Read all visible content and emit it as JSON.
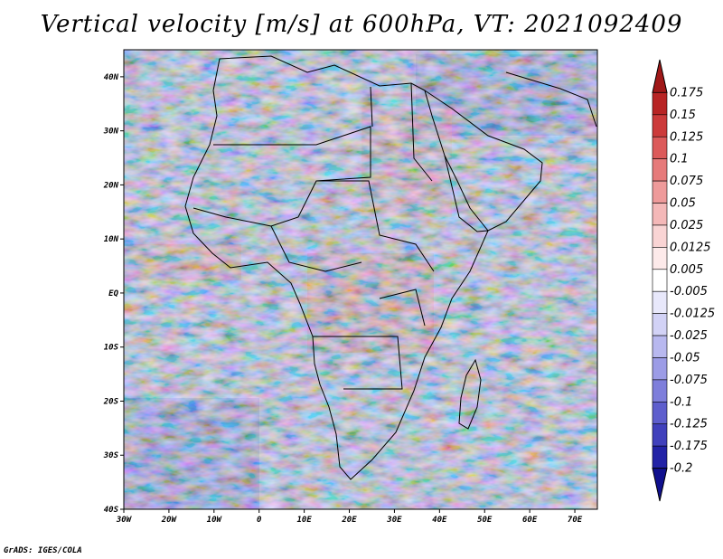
{
  "title": "Vertical velocity [m/s] at 600hPa, VT: 2021092409",
  "credit": "GrADS: IGES/COLA",
  "map": {
    "lon_range": [
      -30,
      75
    ],
    "lat_range": [
      -40,
      45
    ],
    "lat_ticks": [
      {
        "value": 40,
        "label": "40N"
      },
      {
        "value": 30,
        "label": "30N"
      },
      {
        "value": 20,
        "label": "20N"
      },
      {
        "value": 10,
        "label": "10N"
      },
      {
        "value": 0,
        "label": "EQ"
      },
      {
        "value": -10,
        "label": "10S"
      },
      {
        "value": -20,
        "label": "20S"
      },
      {
        "value": -30,
        "label": "30S"
      },
      {
        "value": -40,
        "label": "40S"
      }
    ],
    "lon_ticks": [
      {
        "value": -30,
        "label": "30W"
      },
      {
        "value": -20,
        "label": "20W"
      },
      {
        "value": -10,
        "label": "10W"
      },
      {
        "value": 0,
        "label": "0"
      },
      {
        "value": 10,
        "label": "10E"
      },
      {
        "value": 20,
        "label": "20E"
      },
      {
        "value": 30,
        "label": "30E"
      },
      {
        "value": 40,
        "label": "40E"
      },
      {
        "value": 50,
        "label": "50E"
      },
      {
        "value": 60,
        "label": "60E"
      },
      {
        "value": 70,
        "label": "70E"
      }
    ]
  },
  "colorbar": {
    "labels": [
      "0.175",
      "0.15",
      "0.125",
      "0.1",
      "0.075",
      "0.05",
      "0.025",
      "0.0125",
      "0.005",
      "-0.005",
      "-0.0125",
      "-0.025",
      "-0.05",
      "-0.075",
      "-0.1",
      "-0.125",
      "-0.175",
      "-0.2"
    ],
    "colors": [
      "#a01818",
      "#b82424",
      "#cc3a3a",
      "#dc5a5a",
      "#e67a7a",
      "#ee9a9a",
      "#f4b8b8",
      "#f9d4d4",
      "#fdeaea",
      "#ffffff",
      "#e8e8fb",
      "#d2d2f6",
      "#b8b8ef",
      "#9c9ce6",
      "#7e7edb",
      "#5e5ecd",
      "#4040bc",
      "#2222a6",
      "#10108e"
    ]
  }
}
